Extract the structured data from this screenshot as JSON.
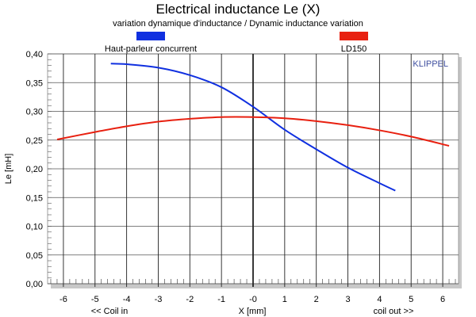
{
  "chart_data": {
    "type": "line",
    "title": "Electrical inductance Le (X)",
    "subtitle": "variation dynamique d'inductance / Dynamic inductance variation",
    "xlabel": "X [mm]",
    "ylabel": "Le [mH]",
    "x_left_note": "<< Coil in",
    "x_right_note": "coil out >>",
    "watermark": "KLIPPEL",
    "xlim": [
      -6.5,
      6.5
    ],
    "ylim": [
      0,
      0.4
    ],
    "x_ticks": [
      -6,
      -5,
      -4,
      -3,
      -2,
      -1,
      0,
      1,
      2,
      3,
      4,
      5,
      6
    ],
    "x_tick_labels": [
      "-6",
      "-5",
      "-4",
      "-3",
      "-2",
      "-1",
      "-0",
      "1",
      "2",
      "3",
      "4",
      "5",
      "6"
    ],
    "y_ticks": [
      0,
      0.05,
      0.1,
      0.15,
      0.2,
      0.25,
      0.3,
      0.35,
      0.4
    ],
    "y_tick_labels": [
      "0,00",
      "0,05",
      "0,10",
      "0,15",
      "0,20",
      "0,25",
      "0,30",
      "0,35",
      "0,40"
    ],
    "grid": true,
    "legend_placement": "top",
    "series": [
      {
        "name": "Haut-parleur concurrent",
        "color": "#1030e0",
        "x": [
          -4.5,
          -4,
          -3,
          -2,
          -1,
          0,
          1,
          2,
          3,
          4,
          4.5
        ],
        "y": [
          0.383,
          0.382,
          0.376,
          0.363,
          0.342,
          0.308,
          0.268,
          0.234,
          0.202,
          0.175,
          0.162
        ]
      },
      {
        "name": "LD150",
        "color": "#e82010",
        "x": [
          -6.2,
          -5,
          -4,
          -3,
          -2,
          -1,
          0,
          1,
          2,
          3,
          4,
          5,
          6.2
        ],
        "y": [
          0.251,
          0.264,
          0.274,
          0.282,
          0.287,
          0.29,
          0.29,
          0.288,
          0.283,
          0.276,
          0.267,
          0.256,
          0.24
        ]
      }
    ]
  }
}
